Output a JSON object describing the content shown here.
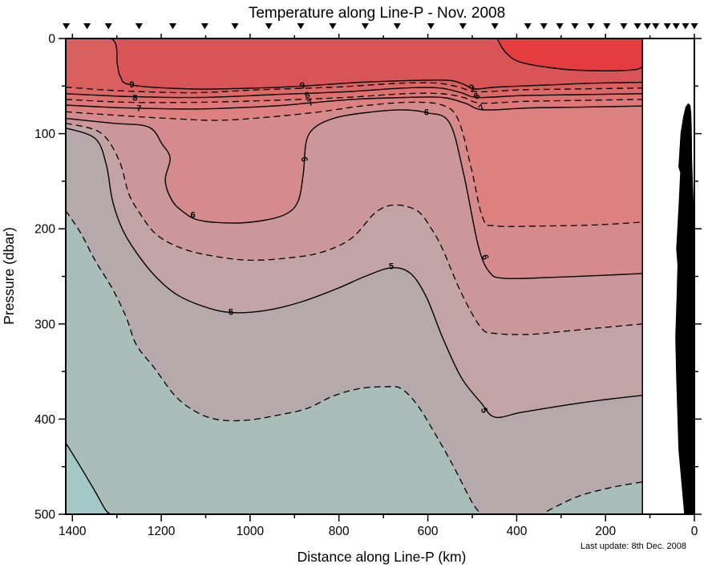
{
  "chart_data": {
    "type": "contour",
    "title": "Temperature along Line-P - Nov. 2008",
    "xlabel": "Distance along Line-P (km)",
    "ylabel": "Pressure (dbar)",
    "footnote": "Last update: 8th Dec. 2008",
    "x_axis": {
      "min": 0,
      "max": 1415,
      "reversed": true,
      "major_ticks": [
        1400,
        1200,
        1000,
        800,
        600,
        400,
        200,
        0
      ],
      "minor_ticks": [
        1300,
        1100,
        900,
        700,
        500,
        300,
        100
      ]
    },
    "y_axis": {
      "min": 0,
      "max": 500,
      "increases_downward": true,
      "major_ticks": [
        0,
        100,
        200,
        300,
        400,
        500
      ],
      "minor_ticks": [
        50,
        150,
        250,
        350,
        450
      ]
    },
    "section_edge_km": 117,
    "station_markers_km": [
      1414,
      1367,
      1319,
      1250,
      1174,
      1102,
      1034,
      958,
      886,
      814,
      741,
      669,
      593,
      521,
      449,
      375,
      339,
      303,
      269,
      233,
      197,
      159,
      128,
      106,
      87,
      61,
      41,
      20,
      0
    ],
    "colors": {
      "background": "#FFFFFF",
      "frame": "#000000",
      "contour_line": "#000000",
      "bathymetry": "#000000",
      "station_marker": "#000000"
    },
    "bands": [
      {
        "range": "10+",
        "color": "#E53C3F"
      },
      {
        "range": "9-10",
        "color": "#D85456"
      },
      {
        "range": "8.5-9",
        "color": "#DA6060"
      },
      {
        "range": "8-8.5",
        "color": "#DC6868"
      },
      {
        "range": "7.5-8",
        "color": "#DE7070"
      },
      {
        "range": "7-7.5",
        "color": "#DF7878"
      },
      {
        "range": "6.5-7",
        "color": "#DD8080"
      },
      {
        "range": "6-6.5",
        "color": "#D58A8C"
      },
      {
        "range": "5.5-6",
        "color": "#CB979A"
      },
      {
        "range": "5-5.5",
        "color": "#C2A3A6"
      },
      {
        "range": "4.5-5",
        "color": "#B6A9AC"
      },
      {
        "range": "4-4.5",
        "color": "#A9BDB9"
      },
      {
        "range": "below-4",
        "color": "#A2C9C5"
      }
    ],
    "base_band": "9-10",
    "contours": [
      {
        "level": 10,
        "style": "solid",
        "band": "10+",
        "points": [
          [
            444,
            0
          ],
          [
            426,
            14
          ],
          [
            390,
            25
          ],
          [
            299,
            32
          ],
          [
            209,
            34
          ],
          [
            137,
            33
          ],
          [
            117,
            30
          ]
        ],
        "close": [
          [
            117,
            0
          ]
        ]
      },
      {
        "level": 9,
        "style": "solid",
        "band": "8.5-9",
        "points": [
          [
            1415,
            0
          ],
          [
            1313,
            0
          ],
          [
            1299,
            27
          ],
          [
            1292,
            40
          ],
          [
            1266,
            49
          ],
          [
            1129,
            53
          ],
          [
            985,
            52
          ],
          [
            882,
            50
          ],
          [
            750,
            46
          ],
          [
            624,
            44
          ],
          [
            552,
            44
          ],
          [
            520,
            48
          ],
          [
            494,
            53
          ],
          [
            444,
            51
          ],
          [
            336,
            49
          ],
          [
            227,
            47
          ],
          [
            117,
            46
          ]
        ],
        "close": [
          [
            117,
            500
          ],
          [
            1415,
            500
          ]
        ]
      },
      {
        "level": 8.5,
        "style": "dashed",
        "band": "8-8.5",
        "points": [
          [
            1415,
            51
          ],
          [
            1292,
            55
          ],
          [
            1129,
            57
          ],
          [
            985,
            54
          ],
          [
            805,
            51
          ],
          [
            660,
            47
          ],
          [
            579,
            47
          ],
          [
            530,
            51
          ],
          [
            490,
            56
          ],
          [
            390,
            54
          ],
          [
            263,
            53
          ],
          [
            117,
            52
          ]
        ],
        "close": [
          [
            117,
            500
          ],
          [
            1415,
            500
          ]
        ]
      },
      {
        "level": 8,
        "style": "solid",
        "band": "7.5-8",
        "points": [
          [
            1415,
            58
          ],
          [
            1274,
            61
          ],
          [
            1111,
            62
          ],
          [
            949,
            59
          ],
          [
            787,
            56
          ],
          [
            651,
            52
          ],
          [
            574,
            52
          ],
          [
            525,
            57
          ],
          [
            487,
            62
          ],
          [
            390,
            60
          ],
          [
            263,
            59
          ],
          [
            117,
            58
          ]
        ],
        "close": [
          [
            117,
            500
          ],
          [
            1415,
            500
          ]
        ]
      },
      {
        "level": 7.5,
        "style": "dashed",
        "band": "7-7.5",
        "points": [
          [
            1415,
            64
          ],
          [
            1274,
            67
          ],
          [
            1111,
            67
          ],
          [
            949,
            65
          ],
          [
            787,
            62
          ],
          [
            651,
            58
          ],
          [
            570,
            58
          ],
          [
            520,
            62
          ],
          [
            480,
            68
          ],
          [
            381,
            66
          ],
          [
            254,
            65
          ],
          [
            117,
            64
          ]
        ],
        "close": [
          [
            117,
            500
          ],
          [
            1415,
            500
          ]
        ]
      },
      {
        "level": 7,
        "style": "solid",
        "band": "6.5-7",
        "points": [
          [
            1415,
            70
          ],
          [
            1274,
            73
          ],
          [
            1111,
            74
          ],
          [
            949,
            71
          ],
          [
            871,
            68
          ],
          [
            769,
            64
          ],
          [
            651,
            62
          ],
          [
            567,
            62
          ],
          [
            516,
            68
          ],
          [
            475,
            75
          ],
          [
            372,
            73
          ],
          [
            245,
            72
          ],
          [
            117,
            71
          ]
        ],
        "close": [
          [
            117,
            500
          ],
          [
            1415,
            500
          ]
        ]
      },
      {
        "level": 6.5,
        "style": "dashed",
        "band": "6-6.5",
        "points": [
          [
            1415,
            77
          ],
          [
            1292,
            81
          ],
          [
            1183,
            84
          ],
          [
            1075,
            86
          ],
          [
            967,
            83
          ],
          [
            841,
            77
          ],
          [
            750,
            71
          ],
          [
            642,
            67
          ],
          [
            567,
            70
          ],
          [
            531,
            86
          ],
          [
            502,
            137
          ],
          [
            476,
            189
          ],
          [
            447,
            197
          ],
          [
            336,
            197
          ],
          [
            227,
            196
          ],
          [
            117,
            193
          ]
        ],
        "close": [
          [
            117,
            500
          ],
          [
            1415,
            500
          ]
        ]
      },
      {
        "level": 6,
        "style": "solid",
        "band": "5.5-6",
        "points": [
          [
            1415,
            84
          ],
          [
            1310,
            89
          ],
          [
            1229,
            93
          ],
          [
            1198,
            111
          ],
          [
            1180,
            126
          ],
          [
            1191,
            149
          ],
          [
            1176,
            170
          ],
          [
            1151,
            182
          ],
          [
            1115,
            191
          ],
          [
            1039,
            194
          ],
          [
            967,
            191
          ],
          [
            917,
            184
          ],
          [
            891,
            170
          ],
          [
            880,
            141
          ],
          [
            873,
            107
          ],
          [
            850,
            92
          ],
          [
            805,
            83
          ],
          [
            741,
            78
          ],
          [
            660,
            75
          ],
          [
            603,
            78
          ],
          [
            552,
            88
          ],
          [
            520,
            141
          ],
          [
            487,
            217
          ],
          [
            462,
            245
          ],
          [
            429,
            252
          ],
          [
            318,
            251
          ],
          [
            209,
            249
          ],
          [
            117,
            247
          ]
        ],
        "close": [
          [
            117,
            500
          ],
          [
            1415,
            500
          ]
        ]
      },
      {
        "level": 5.5,
        "style": "dashed",
        "band": "5-5.5",
        "points": [
          [
            1415,
            89
          ],
          [
            1337,
            99
          ],
          [
            1295,
            128
          ],
          [
            1274,
            162
          ],
          [
            1252,
            181
          ],
          [
            1211,
            206
          ],
          [
            1151,
            221
          ],
          [
            1079,
            229
          ],
          [
            1003,
            233
          ],
          [
            922,
            231
          ],
          [
            841,
            225
          ],
          [
            772,
            210
          ],
          [
            718,
            183
          ],
          [
            675,
            175
          ],
          [
            624,
            181
          ],
          [
            592,
            200
          ],
          [
            567,
            221
          ],
          [
            525,
            267
          ],
          [
            480,
            304
          ],
          [
            447,
            310
          ],
          [
            372,
            311
          ],
          [
            299,
            308
          ],
          [
            209,
            304
          ],
          [
            117,
            300
          ]
        ],
        "close": [
          [
            117,
            500
          ],
          [
            1415,
            500
          ]
        ]
      },
      {
        "level": 5,
        "style": "solid",
        "band": "4.5-5",
        "points": [
          [
            1415,
            94
          ],
          [
            1349,
            105
          ],
          [
            1324,
            132
          ],
          [
            1310,
            170
          ],
          [
            1288,
            200
          ],
          [
            1256,
            225
          ],
          [
            1211,
            251
          ],
          [
            1162,
            270
          ],
          [
            1102,
            282
          ],
          [
            1043,
            288
          ],
          [
            967,
            286
          ],
          [
            886,
            277
          ],
          [
            805,
            263
          ],
          [
            741,
            250
          ],
          [
            682,
            241
          ],
          [
            639,
            247
          ],
          [
            603,
            272
          ],
          [
            567,
            314
          ],
          [
            525,
            356
          ],
          [
            480,
            383
          ],
          [
            449,
            398
          ],
          [
            390,
            393
          ],
          [
            299,
            386
          ],
          [
            209,
            380
          ],
          [
            117,
            375
          ]
        ],
        "close": [
          [
            117,
            500
          ],
          [
            1415,
            500
          ]
        ]
      },
      {
        "level": 4.5,
        "style": "dashed",
        "band": "4-4.5",
        "points": [
          [
            1415,
            181
          ],
          [
            1382,
            204
          ],
          [
            1348,
            234
          ],
          [
            1310,
            263
          ],
          [
            1279,
            293
          ],
          [
            1256,
            322
          ],
          [
            1216,
            346
          ],
          [
            1166,
            377
          ],
          [
            1115,
            394
          ],
          [
            1066,
            401
          ],
          [
            1003,
            401
          ],
          [
            940,
            396
          ],
          [
            873,
            389
          ],
          [
            814,
            376
          ],
          [
            754,
            368
          ],
          [
            696,
            366
          ],
          [
            660,
            368
          ],
          [
            624,
            385
          ],
          [
            588,
            412
          ],
          [
            543,
            449
          ],
          [
            501,
            487
          ],
          [
            480,
            500
          ]
        ],
        "close": [
          [
            1415,
            500
          ]
        ]
      },
      {
        "level": 4.5,
        "style": "dashed",
        "band": "4-4.5",
        "points": [
          [
            332,
            497
          ],
          [
            299,
            489
          ],
          [
            254,
            480
          ],
          [
            188,
            472
          ],
          [
            117,
            466
          ]
        ],
        "close": [
          [
            117,
            500
          ],
          [
            332,
            500
          ]
        ]
      },
      {
        "level": 4,
        "style": "solid",
        "band": "below-4",
        "points": [
          [
            1415,
            425
          ],
          [
            1382,
            450
          ],
          [
            1349,
            476
          ],
          [
            1326,
            495
          ],
          [
            1315,
            500
          ]
        ],
        "close": [
          [
            1415,
            500
          ]
        ]
      }
    ],
    "contour_labels": [
      {
        "text": "9",
        "km": 1266,
        "dbar": 49,
        "rot": 0
      },
      {
        "text": "8",
        "km": 1259,
        "dbar": 63,
        "rot": 0
      },
      {
        "text": "7",
        "km": 1250,
        "dbar": 74,
        "rot": 0
      },
      {
        "text": "9",
        "km": 882,
        "dbar": 50,
        "rot": -10
      },
      {
        "text": "8",
        "km": 871,
        "dbar": 60,
        "rot": -25
      },
      {
        "text": "7",
        "km": 864,
        "dbar": 68,
        "rot": -30
      },
      {
        "text": "9",
        "km": 500,
        "dbar": 52,
        "rot": -35
      },
      {
        "text": "8",
        "km": 489,
        "dbar": 61,
        "rot": -40
      },
      {
        "text": "7",
        "km": 478,
        "dbar": 73,
        "rot": -45
      },
      {
        "text": "6",
        "km": 1129,
        "dbar": 186,
        "rot": 0
      },
      {
        "text": "6",
        "km": 879,
        "dbar": 127,
        "rot": 80
      },
      {
        "text": "6",
        "km": 603,
        "dbar": 78,
        "rot": 0
      },
      {
        "text": "6",
        "km": 472,
        "dbar": 230,
        "rot": 72
      },
      {
        "text": "5",
        "km": 1043,
        "dbar": 288,
        "rot": 0
      },
      {
        "text": "5",
        "km": 682,
        "dbar": 240,
        "rot": 0
      },
      {
        "text": "5",
        "km": 474,
        "dbar": 391,
        "rot": 75
      }
    ],
    "bathymetry": [
      [
        23,
        500
      ],
      [
        36,
        432
      ],
      [
        41,
        356
      ],
      [
        43,
        314
      ],
      [
        40,
        272
      ],
      [
        38,
        238
      ],
      [
        41,
        221
      ],
      [
        36,
        179
      ],
      [
        32,
        141
      ],
      [
        36,
        135
      ],
      [
        31,
        99
      ],
      [
        25,
        82
      ],
      [
        20,
        72
      ],
      [
        14,
        68
      ],
      [
        9,
        70
      ],
      [
        7,
        78
      ],
      [
        6,
        94
      ],
      [
        5,
        128
      ],
      [
        0,
        196
      ],
      [
        0,
        500
      ]
    ]
  }
}
